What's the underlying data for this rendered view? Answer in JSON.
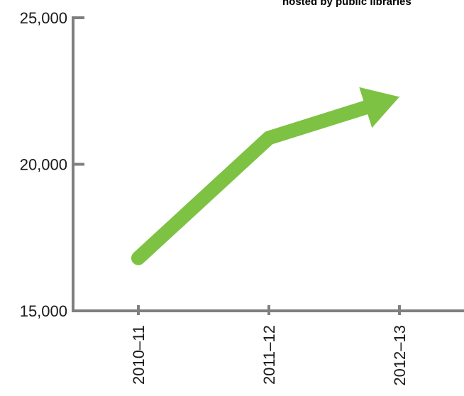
{
  "chart_data": {
    "type": "line",
    "title": "hosted by public libraries",
    "categories": [
      "2010–11",
      "2011–12",
      "2012–13"
    ],
    "values": [
      16800,
      20900,
      22300
    ],
    "ylim": [
      15000,
      25000
    ],
    "yticks": [
      15000,
      20000,
      25000
    ],
    "ytick_labels": [
      "15,000",
      "20,000",
      "25,000"
    ],
    "grid": false,
    "legend": "none",
    "colors": {
      "line": "#7dc242",
      "axis": "#7f7f7f",
      "text": "#1a1a1a"
    }
  }
}
